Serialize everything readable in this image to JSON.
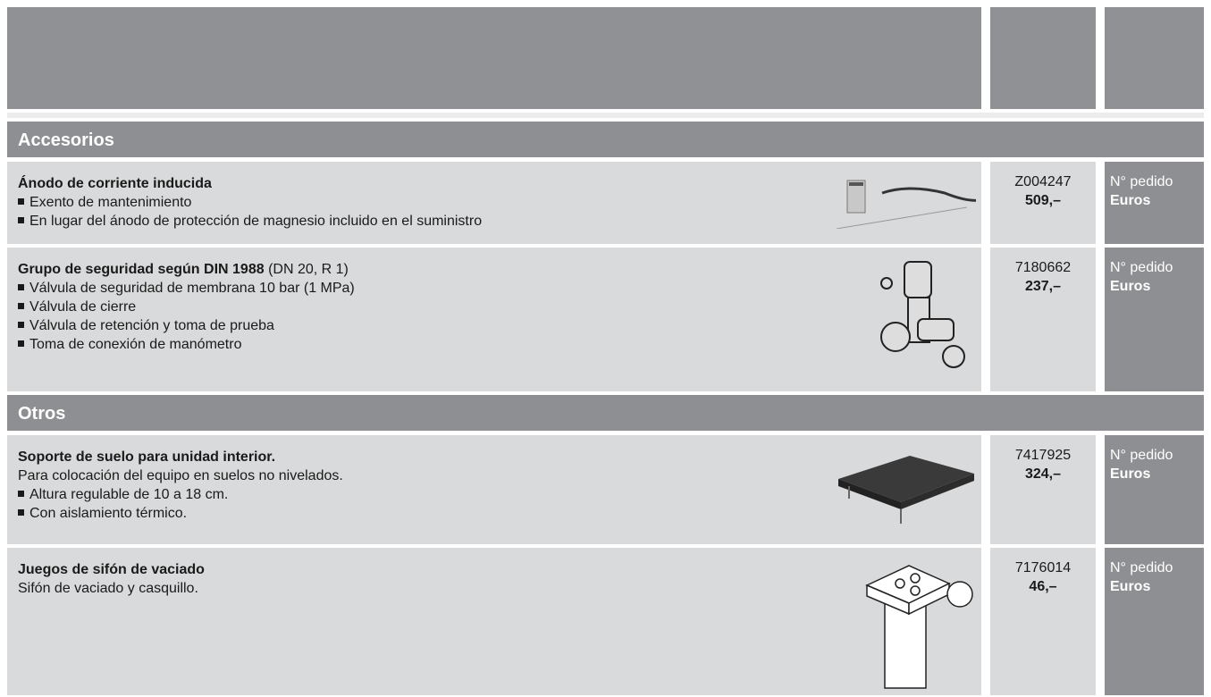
{
  "sections": [
    {
      "title": "Accesorios",
      "items": [
        {
          "title": "Ánodo de corriente inducida",
          "bullets": [
            "Exento de mantenimiento",
            "En lugar del ánodo de protección de magnesio incluido en el suministro"
          ],
          "code": "Z004247",
          "price": "509,–",
          "order_label": "N° pedido",
          "currency_label": "Euros"
        },
        {
          "title": "Grupo de seguridad según DIN 1988",
          "title_suffix": "(DN 20, R 1)",
          "bullets": [
            "Válvula de seguridad de membrana 10 bar (1 MPa)",
            "Válvula de cierre",
            "Válvula de retención y toma de prueba",
            "Toma de conexión de manómetro"
          ],
          "code": "7180662",
          "price": "237,–",
          "order_label": "N° pedido",
          "currency_label": "Euros"
        }
      ]
    },
    {
      "title": "Otros",
      "items": [
        {
          "title": "Soporte de suelo para unidad interior.",
          "description": "Para colocación del equipo en suelos no nivelados.",
          "bullets": [
            "Altura regulable de 10 a 18 cm.",
            "Con aislamiento térmico."
          ],
          "code": "7417925",
          "price": "324,–",
          "order_label": "N° pedido",
          "currency_label": "Euros"
        },
        {
          "title": "Juegos de sifón de vaciado",
          "description": "Sifón de vaciado y casquillo.",
          "bullets": [],
          "code": "7176014",
          "price": "46,–",
          "order_label": "N° pedido",
          "currency_label": "Euros"
        }
      ]
    }
  ]
}
